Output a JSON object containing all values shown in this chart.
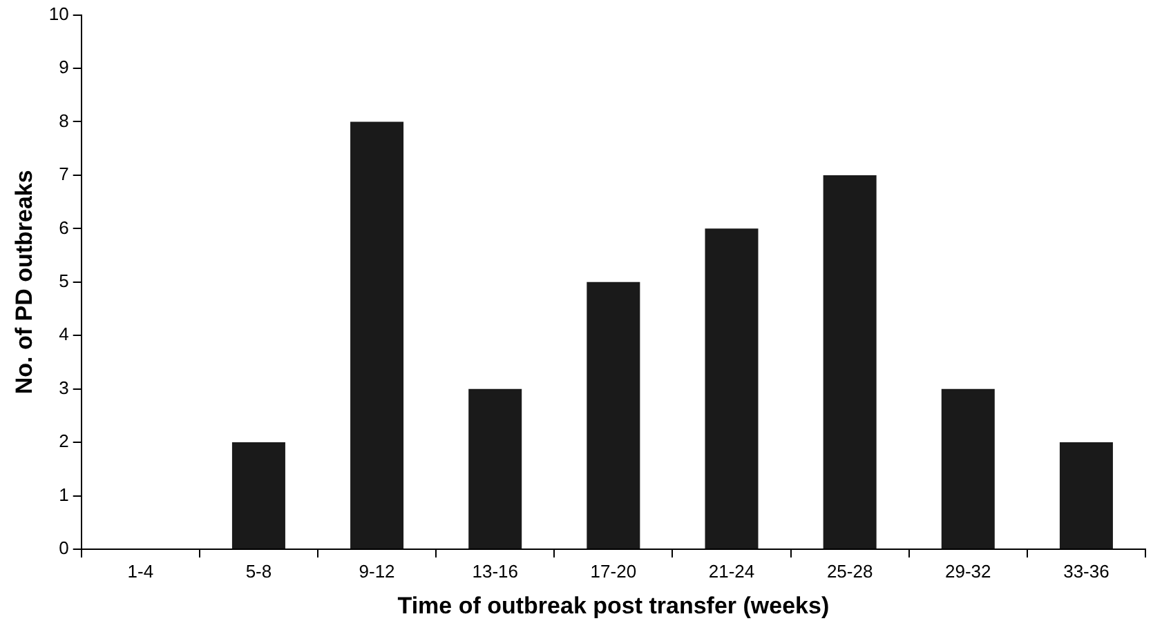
{
  "chart_data": {
    "type": "bar",
    "xlabel": "Time of outbreak post transfer (weeks)",
    "ylabel": "No. of PD outbreaks",
    "categories": [
      "1-4",
      "5-8",
      "9-12",
      "13-16",
      "17-20",
      "21-24",
      "25-28",
      "29-32",
      "33-36"
    ],
    "values": [
      0,
      2,
      8,
      3,
      5,
      6,
      7,
      3,
      2
    ],
    "color": "#1a1a1a",
    "ylim": [
      0,
      10
    ],
    "yticks": [
      0,
      1,
      2,
      3,
      4,
      5,
      6,
      7,
      8,
      9,
      10
    ],
    "grid": false,
    "legend": false
  }
}
